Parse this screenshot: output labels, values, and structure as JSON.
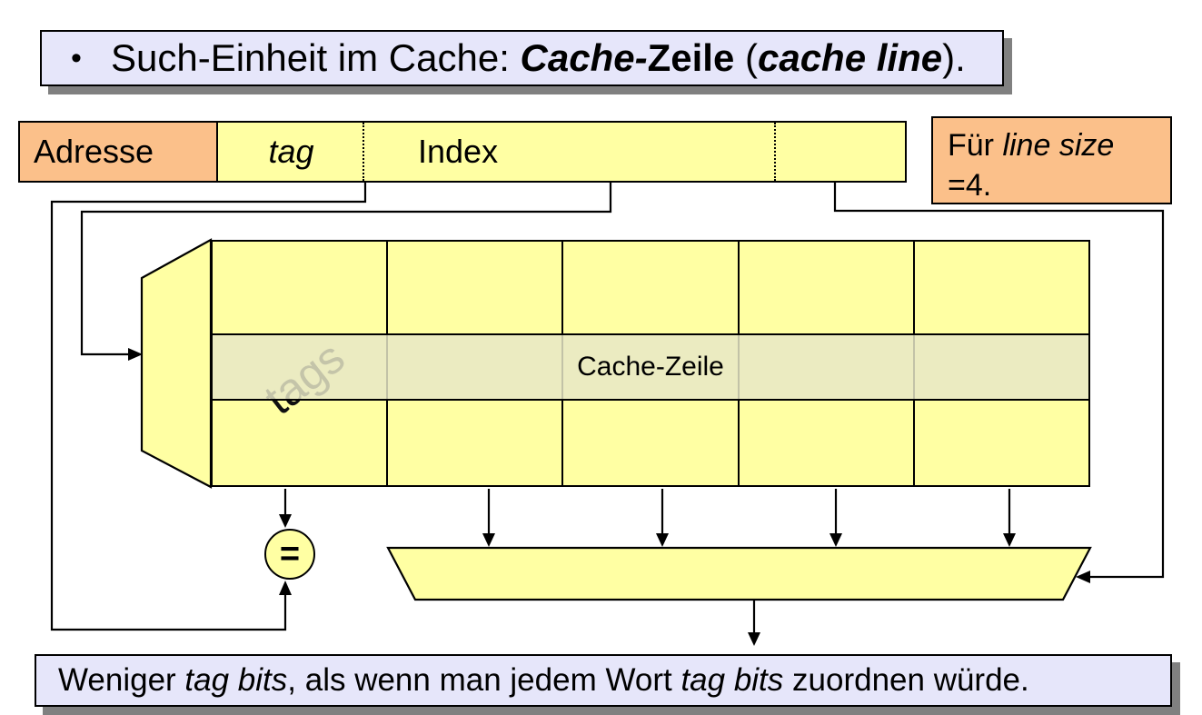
{
  "slide": {
    "title": {
      "bullet": "•",
      "segments": [
        {
          "text": "Such-Einheit im Cache: "
        },
        {
          "text": "Cache-",
          "style": "bi"
        },
        {
          "text": "Zeile",
          "style": "b"
        },
        {
          "text": " ("
        },
        {
          "text": "cache line",
          "style": "bi"
        },
        {
          "text": ")."
        }
      ]
    },
    "address_label": "Adresse",
    "address_field": {
      "tag_label": "tag",
      "index_label": "Index"
    },
    "note": {
      "segments": [
        {
          "text": "Für "
        },
        {
          "text": "line size",
          "style": "i"
        },
        {
          "text": "\n=4."
        }
      ]
    },
    "cache": {
      "tags_label": "tags",
      "line_label": "Cache-Zeile",
      "columns": 5,
      "rows": 3
    },
    "comparator_label": "=",
    "footer": {
      "segments": [
        {
          "text": "Weniger "
        },
        {
          "text": "tag bits",
          "style": "i"
        },
        {
          "text": ", als wenn man jedem Wort "
        },
        {
          "text": "tag bits",
          "style": "i"
        },
        {
          "text": " zuordnen würde."
        }
      ]
    },
    "colors": {
      "box_yellow": "#ffffa3",
      "box_peach": "#fbc08a",
      "box_lavender": "#e6e6fa",
      "highlight_band": "#e7e7c7",
      "shadow_gray": "#808080"
    }
  }
}
